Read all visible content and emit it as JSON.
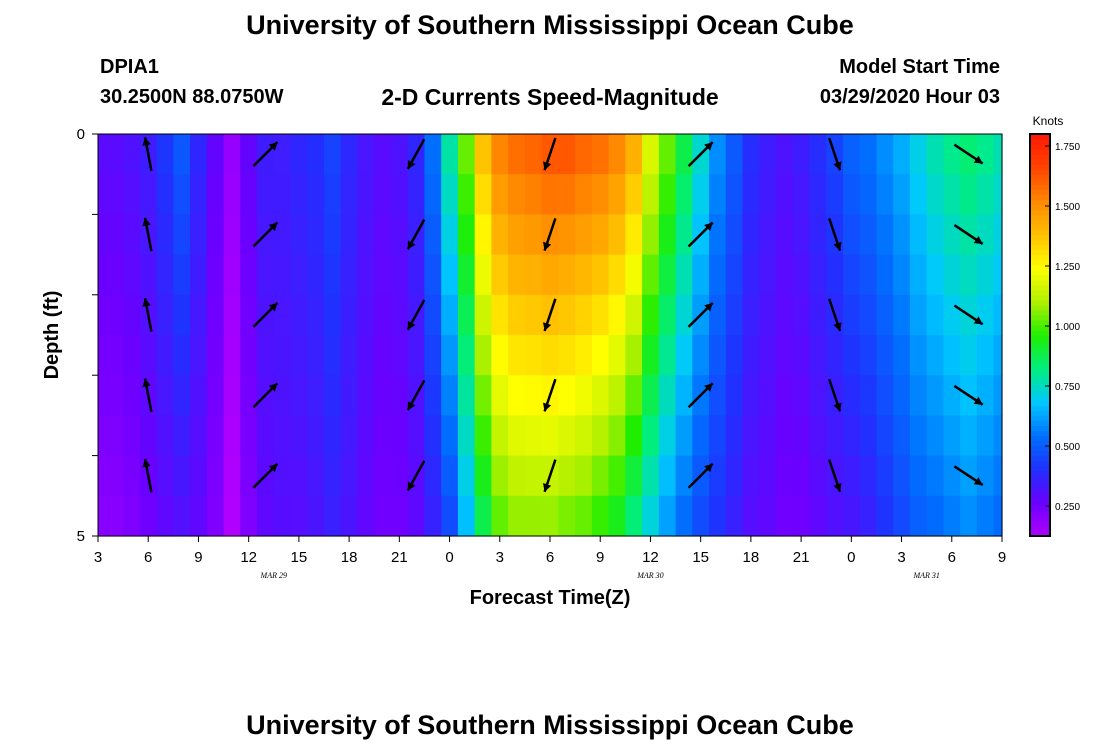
{
  "header": {
    "title": "University of Southern Mississippi Ocean Cube",
    "footer_title": "University of Southern Mississippi Ocean Cube",
    "station": "DPIA1",
    "coords": "30.2500N 88.0750W",
    "subtitle": "2-D Currents Speed-Magnitude",
    "model_label": "Model Start Time",
    "model_time": "03/29/2020 Hour 03"
  },
  "chart_data": {
    "type": "heatmap",
    "title": "2-D Currents Speed-Magnitude",
    "xlabel": "Forecast Time(Z)",
    "ylabel": "Depth (ft)",
    "x_unit": "hours since 03/29/2020 03Z",
    "xlim": [
      0,
      54
    ],
    "ylim": [
      0,
      5
    ],
    "x_tick_labels": [
      "3",
      "6",
      "9",
      "12",
      "15",
      "18",
      "21",
      "0",
      "3",
      "6",
      "9",
      "12",
      "15",
      "18",
      "21",
      "0",
      "3",
      "6",
      "9"
    ],
    "date_labels": [
      {
        "label": "MAR  29",
        "hour": 10.5
      },
      {
        "label": "MAR  30",
        "hour": 33
      },
      {
        "label": "MAR  31",
        "hour": 49.5
      }
    ],
    "y_tick_labels": [
      "0",
      "5"
    ],
    "colorbar": {
      "unit": "Knots",
      "range": [
        0.125,
        1.8
      ],
      "tick_values": [
        0.25,
        0.5,
        0.75,
        1.0,
        1.25,
        1.5,
        1.75
      ],
      "tick_labels": [
        "0.250",
        "0.500",
        "0.750",
        "1.000",
        "1.250",
        "1.500",
        "1.750"
      ],
      "colors": [
        "#b000ff",
        "#6a00ff",
        "#2030ff",
        "#0070ff",
        "#00c8ff",
        "#00ee7f",
        "#20ee00",
        "#b0f000",
        "#ffff00",
        "#ffc000",
        "#ff8800",
        "#ff4400",
        "#ff1800"
      ]
    },
    "time_hours": [
      0,
      1,
      2,
      3,
      4,
      5,
      6,
      7,
      8,
      9,
      10,
      11,
      12,
      13,
      14,
      15,
      16,
      17,
      18,
      19,
      20,
      21,
      22,
      23,
      24,
      25,
      26,
      27,
      28,
      29,
      30,
      31,
      32,
      33,
      34,
      35,
      36,
      37,
      38,
      39,
      40,
      41,
      42,
      43,
      44,
      45,
      46,
      47,
      48,
      49,
      50,
      51,
      52,
      53,
      54
    ],
    "speed_top": [
      0.3,
      0.3,
      0.32,
      0.35,
      0.42,
      0.5,
      0.38,
      0.28,
      0.18,
      0.28,
      0.35,
      0.35,
      0.38,
      0.4,
      0.45,
      0.38,
      0.33,
      0.3,
      0.32,
      0.38,
      0.55,
      0.8,
      1.05,
      1.4,
      1.55,
      1.6,
      1.62,
      1.65,
      1.65,
      1.62,
      1.6,
      1.55,
      1.45,
      1.2,
      1.05,
      0.9,
      0.75,
      0.6,
      0.5,
      0.4,
      0.35,
      0.32,
      0.35,
      0.4,
      0.45,
      0.52,
      0.55,
      0.6,
      0.65,
      0.72,
      0.78,
      0.82,
      0.85,
      0.82,
      0.78
    ],
    "speed_bottom": [
      0.2,
      0.2,
      0.22,
      0.25,
      0.28,
      0.3,
      0.28,
      0.22,
      0.12,
      0.22,
      0.28,
      0.3,
      0.3,
      0.32,
      0.35,
      0.32,
      0.28,
      0.25,
      0.25,
      0.28,
      0.35,
      0.45,
      0.65,
      0.85,
      1.0,
      1.05,
      1.05,
      1.05,
      1.02,
      1.0,
      0.95,
      0.9,
      0.8,
      0.7,
      0.6,
      0.52,
      0.45,
      0.4,
      0.35,
      0.3,
      0.28,
      0.25,
      0.25,
      0.28,
      0.3,
      0.32,
      0.35,
      0.4,
      0.45,
      0.5,
      0.52,
      0.55,
      0.58,
      0.55,
      0.52
    ],
    "vector_rows_depth_ft": [
      0.25,
      1.25,
      2.25,
      3.25,
      4.25
    ],
    "vector_hours": [
      3,
      10,
      19,
      27,
      36,
      44,
      52
    ],
    "vector_u": [
      -0.15,
      0.6,
      -0.5,
      -0.3,
      0.6,
      0.3,
      0.9
    ],
    "vector_v": [
      0.8,
      0.6,
      -0.9,
      -0.9,
      0.6,
      -0.9,
      -0.6
    ]
  }
}
